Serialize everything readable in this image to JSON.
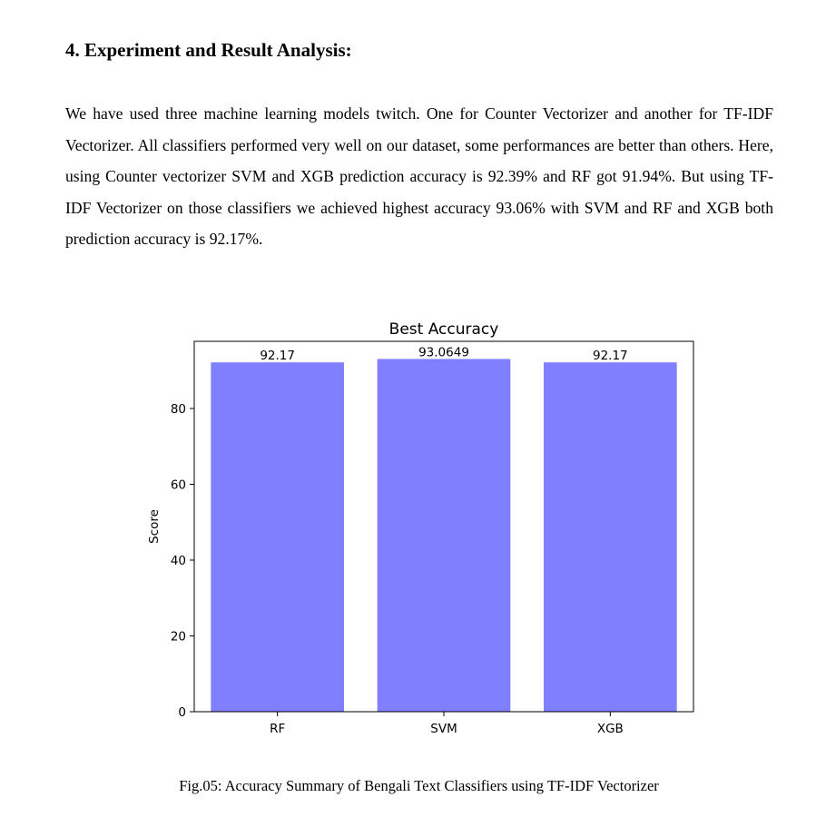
{
  "section": {
    "heading": "4. Experiment and Result Analysis:",
    "paragraph": "We have used three machine learning models twitch. One for Counter Vectorizer and another for TF-IDF Vectorizer. All classifiers performed very well on our dataset, some performances are better than others. Here, using Counter vectorizer  SVM and XGB prediction accuracy is 92.39% and RF got 91.94%. But using TF-IDF Vectorizer on those classifiers we achieved highest accuracy 93.06% with SVM and RF and XGB both prediction accuracy is 92.17%."
  },
  "figure": {
    "caption": "Fig.05: Accuracy Summary of Bengali Text Classifiers using TF-IDF Vectorizer"
  },
  "chart_data": {
    "type": "bar",
    "title": "Best Accuracy",
    "xlabel": "",
    "ylabel": "Score",
    "categories": [
      "RF",
      "SVM",
      "XGB"
    ],
    "values": [
      92.17,
      93.0649,
      92.17
    ],
    "data_labels": [
      "92.17",
      "93.0649",
      "92.17"
    ],
    "yticks": [
      0,
      20,
      40,
      60,
      80
    ],
    "ylim": [
      0,
      97.72
    ],
    "grid": false,
    "bar_color": "#8080ff"
  }
}
